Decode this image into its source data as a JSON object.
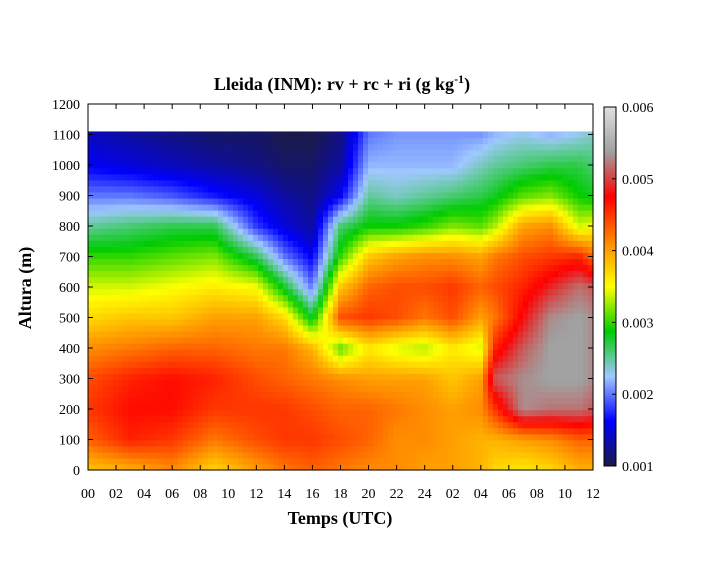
{
  "chart_data": {
    "type": "heatmap",
    "title": "Lleida (INM): rv + rc + ri (g kg",
    "title_sup": "-1",
    "title_end": ")",
    "xlabel": "Temps (UTC)",
    "ylabel": "Altura (m)",
    "x_tick_labels": [
      "00",
      "02",
      "04",
      "06",
      "08",
      "10",
      "12",
      "14",
      "16",
      "18",
      "20",
      "22",
      "24",
      "02",
      "04",
      "06",
      "08",
      "10",
      "12"
    ],
    "x_range_hours": [
      0,
      36
    ],
    "y_ticks": [
      0,
      100,
      200,
      300,
      400,
      500,
      600,
      700,
      800,
      900,
      1000,
      1100,
      1200
    ],
    "ylim": [
      0,
      1200
    ],
    "data_top_height": 1110,
    "colorbar": {
      "ticks": [
        "0.006",
        "0.005",
        "0.004",
        "0.003",
        "0.002",
        "0.001"
      ],
      "range": [
        0.001,
        0.006
      ],
      "colors": [
        "#1a1a4a",
        "#0000ff",
        "#a0c8ff",
        "#00cc00",
        "#ffff00",
        "#ff8800",
        "#ff0000",
        "#a0a0a0",
        "#e0e0e0"
      ]
    },
    "levels_m": [
      0,
      100,
      200,
      300,
      400,
      500,
      600,
      700,
      800,
      900,
      1000,
      1100
    ],
    "profiles": [
      {
        "hour": 0,
        "values": [
          0.0038,
          0.0043,
          0.0045,
          0.0044,
          0.0041,
          0.0037,
          0.0034,
          0.003,
          0.0025,
          0.002,
          0.0016,
          0.0014
        ]
      },
      {
        "hour": 3,
        "values": [
          0.0039,
          0.0046,
          0.0047,
          0.0046,
          0.0042,
          0.0038,
          0.0034,
          0.003,
          0.0026,
          0.002,
          0.0015,
          0.0013
        ]
      },
      {
        "hour": 6,
        "values": [
          0.0041,
          0.0045,
          0.0047,
          0.0047,
          0.0043,
          0.0038,
          0.0035,
          0.0031,
          0.0027,
          0.0019,
          0.0014,
          0.0012
        ]
      },
      {
        "hour": 9,
        "values": [
          0.0037,
          0.0042,
          0.0045,
          0.0046,
          0.0043,
          0.004,
          0.0036,
          0.0032,
          0.0027,
          0.0017,
          0.0013,
          0.0011
        ]
      },
      {
        "hour": 12,
        "values": [
          0.004,
          0.0044,
          0.0045,
          0.0044,
          0.0042,
          0.004,
          0.0035,
          0.0027,
          0.0018,
          0.0015,
          0.0012,
          0.0011
        ]
      },
      {
        "hour": 14,
        "values": [
          0.0042,
          0.0045,
          0.0045,
          0.0043,
          0.0042,
          0.0037,
          0.0028,
          0.002,
          0.0015,
          0.0013,
          0.0011,
          0.001
        ]
      },
      {
        "hour": 16,
        "values": [
          0.0043,
          0.0045,
          0.0044,
          0.0042,
          0.0039,
          0.0028,
          0.002,
          0.0016,
          0.0013,
          0.0012,
          0.0011,
          0.001
        ]
      },
      {
        "hour": 18,
        "values": [
          0.0042,
          0.0044,
          0.0043,
          0.0041,
          0.0031,
          0.0044,
          0.0038,
          0.003,
          0.0026,
          0.0016,
          0.0013,
          0.0012
        ]
      },
      {
        "hour": 20,
        "values": [
          0.0041,
          0.0043,
          0.0043,
          0.004,
          0.0036,
          0.0045,
          0.0043,
          0.0038,
          0.0029,
          0.0025,
          0.0022,
          0.002
        ]
      },
      {
        "hour": 22,
        "values": [
          0.0041,
          0.0041,
          0.0042,
          0.004,
          0.0034,
          0.0044,
          0.0044,
          0.004,
          0.0029,
          0.0024,
          0.0022,
          0.0021
        ]
      },
      {
        "hour": 24,
        "values": [
          0.004,
          0.0041,
          0.0041,
          0.004,
          0.0033,
          0.0042,
          0.0044,
          0.0041,
          0.003,
          0.0025,
          0.0022,
          0.0021
        ]
      },
      {
        "hour": 26,
        "values": [
          0.004,
          0.004,
          0.004,
          0.0038,
          0.0036,
          0.0044,
          0.0045,
          0.0041,
          0.0032,
          0.0026,
          0.0022,
          0.0021
        ]
      },
      {
        "hour": 28,
        "values": [
          0.0039,
          0.0039,
          0.0041,
          0.004,
          0.0034,
          0.004,
          0.0043,
          0.004,
          0.0031,
          0.0027,
          0.0024,
          0.0021
        ]
      },
      {
        "hour": 29,
        "values": [
          0.0037,
          0.0039,
          0.0045,
          0.0051,
          0.0046,
          0.0042,
          0.0044,
          0.0042,
          0.0033,
          0.0028,
          0.0025,
          0.0022
        ]
      },
      {
        "hour": 31,
        "values": [
          0.0036,
          0.004,
          0.0053,
          0.0053,
          0.0051,
          0.0048,
          0.0046,
          0.0044,
          0.004,
          0.0031,
          0.0026,
          0.0023
        ]
      },
      {
        "hour": 33,
        "values": [
          0.0037,
          0.0041,
          0.0052,
          0.0054,
          0.0054,
          0.0053,
          0.0049,
          0.0045,
          0.0041,
          0.0032,
          0.0027,
          0.0022
        ]
      },
      {
        "hour": 35,
        "values": [
          0.0039,
          0.0043,
          0.0052,
          0.0054,
          0.0054,
          0.0054,
          0.0052,
          0.0046,
          0.0034,
          0.0029,
          0.0027,
          0.0023
        ]
      },
      {
        "hour": 36,
        "values": [
          0.0039,
          0.0043,
          0.0051,
          0.0053,
          0.0053,
          0.0053,
          0.0051,
          0.0043,
          0.0035,
          0.0028,
          0.0026,
          0.0024
        ]
      }
    ]
  }
}
